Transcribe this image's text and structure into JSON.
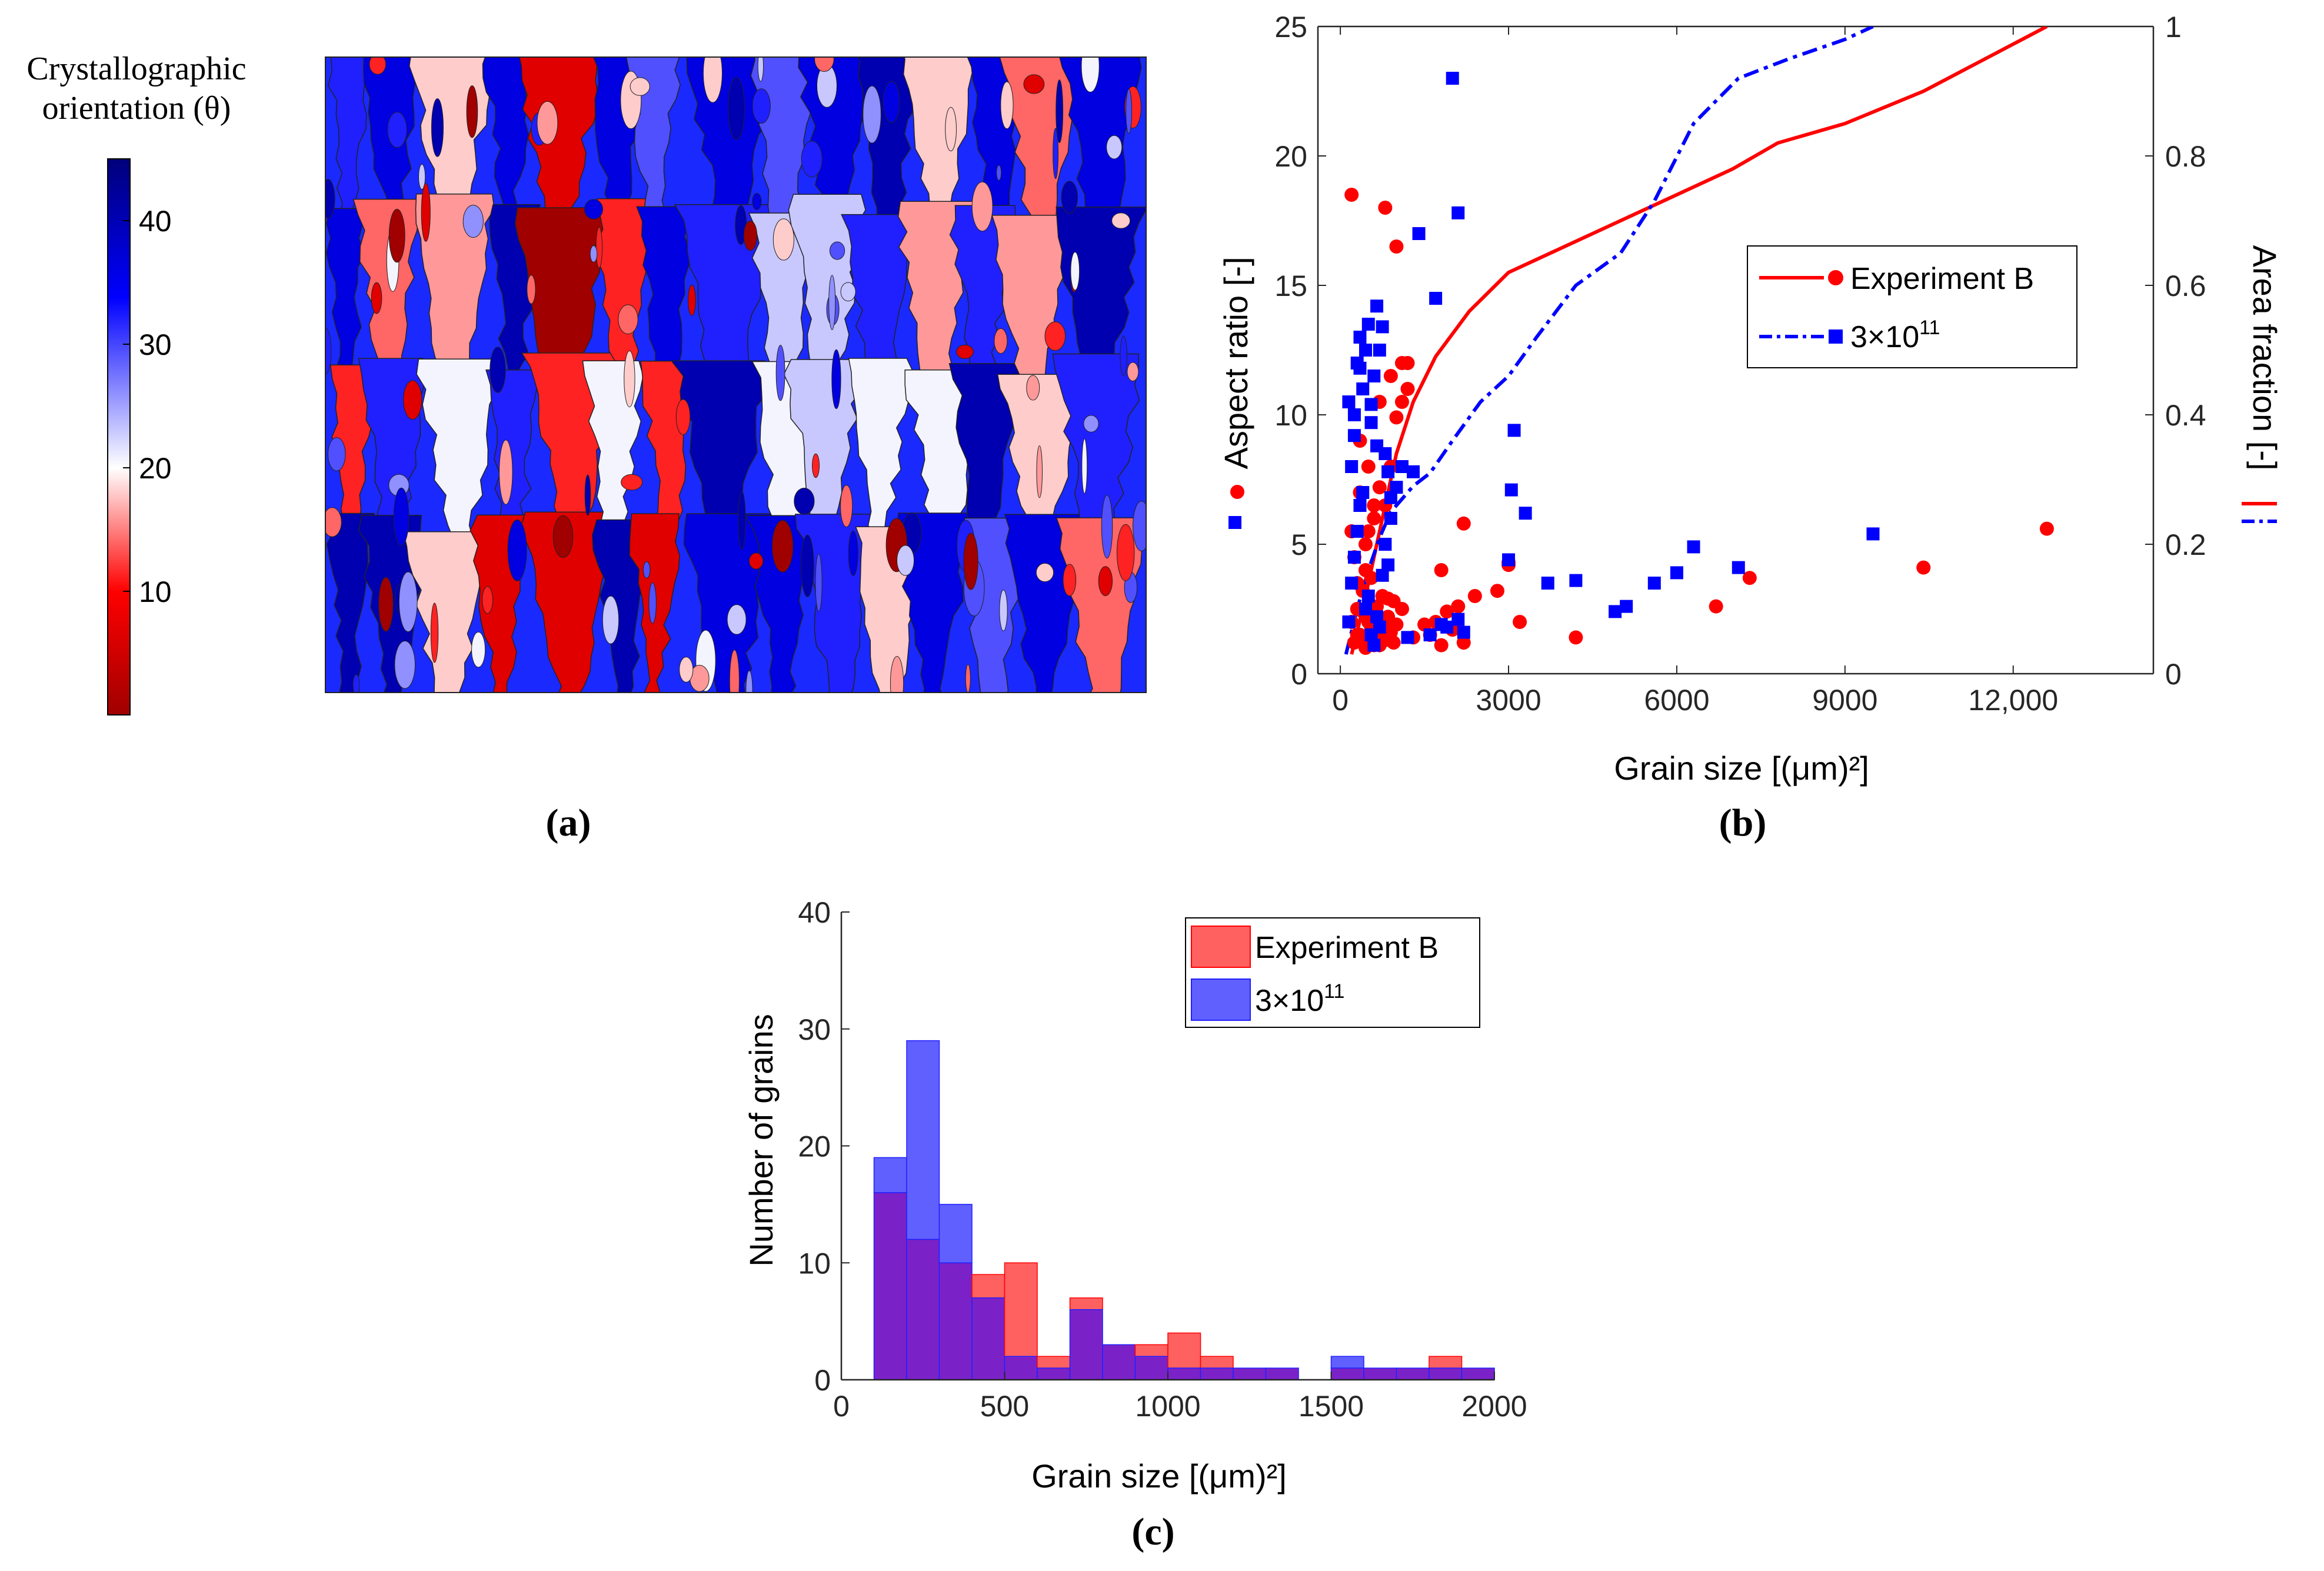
{
  "panels": {
    "a": {
      "caption": "(a)"
    },
    "b": {
      "caption": "(b)"
    },
    "c": {
      "caption": "(c)"
    }
  },
  "colorbar": {
    "title_line1": "Crystallographic",
    "title_line2": "orientation (θ)",
    "ticks": [
      "10",
      "20",
      "30",
      "40"
    ],
    "tick_values": [
      10,
      20,
      30,
      40
    ],
    "range": [
      0,
      45
    ],
    "colors": [
      "#a00000",
      "#ff0000",
      "#ffffff",
      "#0000ff",
      "#00007a"
    ]
  },
  "grain_map": {
    "palette": [
      "#a00000",
      "#e00000",
      "#ff2222",
      "#ff6666",
      "#ff9999",
      "#ffcccc",
      "#f4f4ff",
      "#c8c8ff",
      "#9090ff",
      "#5050ff",
      "#2020ff",
      "#0000e0",
      "#0000b0"
    ]
  },
  "chart_data": [
    {
      "id": "b",
      "type": "line",
      "xlabel": "Grain size [(μm)²]",
      "ylabel_left": "Aspect ratio [-]",
      "ylabel_right": "Area fraction [-]",
      "xlim": [
        -400,
        14500
      ],
      "ylim_left": [
        0,
        25
      ],
      "ylim_right": [
        0,
        1
      ],
      "xticks": [
        0,
        3000,
        6000,
        9000,
        12000
      ],
      "xtick_labels": [
        "0",
        "3000",
        "6000",
        "9000",
        "12,000"
      ],
      "yticks_left": [
        0,
        5,
        10,
        15,
        20,
        25
      ],
      "yticks_right": [
        0,
        0.2,
        0.4,
        0.6,
        0.8,
        1
      ],
      "yticks_right_labels": [
        "0",
        "0.2",
        "0.4",
        "0.6",
        "0.8",
        "1"
      ],
      "legend": {
        "placement": "center-right",
        "entries": [
          "Experiment B",
          "3×10"
        ],
        "superscript": "11"
      },
      "colors": {
        "experiment": "#ff0000",
        "simulation": "#0000ff"
      },
      "series": [
        {
          "name": "Experiment B",
          "kind": "scatter",
          "axis": "left",
          "marker": "circle",
          "x": [
            200,
            250,
            300,
            350,
            400,
            450,
            500,
            550,
            600,
            650,
            700,
            750,
            800,
            850,
            900,
            950,
            1000,
            250,
            300,
            400,
            500,
            600,
            700,
            800,
            900,
            1000,
            1100,
            1200,
            350,
            450,
            550,
            650,
            750,
            850,
            950,
            200,
            300,
            500,
            700,
            900,
            1100,
            1300,
            1500,
            1600,
            1700,
            1800,
            1900,
            2000,
            2100,
            2200,
            2400,
            2800,
            3000,
            3200,
            4200,
            6700,
            7300,
            10400,
            12600,
            200,
            800,
            1000,
            1100,
            1200,
            1800,
            2200,
            3000,
            700,
            900,
            500,
            600,
            450,
            350
          ],
          "y": [
            18.5,
            1.2,
            2.5,
            1.5,
            3.2,
            1.0,
            2.0,
            1.8,
            1.1,
            2.6,
            1.4,
            3.0,
            1.3,
            2.2,
            1.6,
            2.8,
            1.9,
            4.5,
            3.5,
            2.4,
            5.5,
            6.0,
            7.2,
            6.5,
            8.0,
            9.9,
            10.5,
            12.0,
            9.0,
            4.0,
            3.7,
            2.2,
            1.7,
            2.9,
            1.2,
            2.0,
            1.5,
            1.3,
            1.1,
            1.8,
            2.5,
            1.4,
            1.9,
            1.5,
            2.0,
            1.1,
            2.4,
            1.7,
            2.6,
            1.2,
            3.0,
            3.2,
            4.2,
            2.0,
            1.4,
            2.6,
            3.7,
            4.1,
            5.6,
            5.5,
            18.0,
            16.5,
            12.0,
            11.0,
            4.0,
            5.8,
            4.3,
            10.5,
            11.5,
            8.0,
            6.5,
            5.0,
            7.0
          ]
        },
        {
          "name": "3×10¹¹",
          "kind": "scatter",
          "axis": "left",
          "marker": "square",
          "x": [
            150,
            200,
            250,
            300,
            350,
            400,
            450,
            500,
            550,
            600,
            650,
            700,
            750,
            800,
            850,
            900,
            150,
            200,
            250,
            300,
            350,
            400,
            450,
            500,
            550,
            600,
            650,
            700,
            750,
            800,
            850,
            900,
            1000,
            1100,
            1300,
            1600,
            1700,
            1900,
            2000,
            2100,
            2200,
            3000,
            3050,
            3100,
            3300,
            3700,
            4200,
            4900,
            5100,
            5600,
            6000,
            6300,
            7100,
            9500,
            1400,
            1800,
            1200,
            2100,
            250,
            350,
            550,
            650
          ],
          "y": [
            10.5,
            8.0,
            9.2,
            12.0,
            13.0,
            11.0,
            12.5,
            13.5,
            9.7,
            11.5,
            14.2,
            12.5,
            13.4,
            8.5,
            7.8,
            6.0,
            2.0,
            3.5,
            4.5,
            5.5,
            6.5,
            7.0,
            2.5,
            3.0,
            1.5,
            1.1,
            2.2,
            1.8,
            3.8,
            5.0,
            4.2,
            6.8,
            7.2,
            8.0,
            7.8,
            1.5,
            14.5,
            1.8,
            23.0,
            17.8,
            1.6,
            4.4,
            7.1,
            9.4,
            6.2,
            3.5,
            3.6,
            2.4,
            2.6,
            3.5,
            3.9,
            4.9,
            4.1,
            5.4,
            17.0,
            1.9,
            1.4,
            2.1,
            10.0,
            11.8,
            10.4,
            8.8
          ]
        },
        {
          "name": "Experiment B",
          "kind": "line",
          "axis": "right",
          "style": "solid",
          "x": [
            200,
            400,
            600,
            800,
            1000,
            1300,
            1700,
            2300,
            3000,
            4000,
            5000,
            6000,
            7000,
            7800,
            9000,
            10400,
            11500,
            12600
          ],
          "y": [
            0.03,
            0.1,
            0.18,
            0.26,
            0.34,
            0.42,
            0.49,
            0.56,
            0.62,
            0.66,
            0.7,
            0.74,
            0.78,
            0.82,
            0.85,
            0.9,
            0.95,
            1.0
          ]
        },
        {
          "name": "3×10¹¹",
          "kind": "line",
          "axis": "right",
          "style": "dashdot",
          "x": [
            100,
            300,
            500,
            700,
            900,
            1100,
            1300,
            1600,
            2000,
            2500,
            3000,
            3500,
            4200,
            5000,
            5600,
            6300,
            7100,
            8000,
            9000,
            9500
          ],
          "y": [
            0.03,
            0.1,
            0.16,
            0.21,
            0.25,
            0.27,
            0.29,
            0.31,
            0.36,
            0.42,
            0.46,
            0.52,
            0.6,
            0.65,
            0.73,
            0.85,
            0.92,
            0.95,
            0.98,
            1.0
          ]
        }
      ]
    },
    {
      "id": "c",
      "type": "bar",
      "xlabel": "Grain size [(μm)²]",
      "ylabel": "Number of grains",
      "xlim": [
        0,
        2000
      ],
      "ylim": [
        0,
        40
      ],
      "xticks": [
        0,
        500,
        1000,
        1500,
        2000
      ],
      "yticks": [
        0,
        10,
        20,
        30,
        40
      ],
      "bin_edges": [
        100,
        200,
        300,
        400,
        500,
        600,
        700,
        800,
        900,
        1000,
        1100,
        1200,
        1300,
        1400,
        1500,
        1600,
        1700,
        1800,
        1900,
        2000
      ],
      "legend": {
        "placement": "top-right",
        "entries": [
          "Experiment B",
          "3×10"
        ],
        "superscript": "11"
      },
      "colors": {
        "experiment": "#ff6060",
        "simulation": "#6060ff",
        "overlap": "#7a22c8",
        "experiment_edge": "#ff0000",
        "simulation_edge": "#2020ff"
      },
      "series": [
        {
          "name": "Experiment B",
          "values": [
            16,
            12,
            10,
            9,
            10,
            2,
            7,
            3,
            3,
            4,
            2,
            1,
            1,
            0,
            1,
            1,
            1,
            2,
            1
          ]
        },
        {
          "name": "3×10¹¹",
          "values": [
            19,
            29,
            15,
            7,
            2,
            1,
            6,
            3,
            2,
            1,
            1,
            1,
            1,
            0,
            2,
            1,
            1,
            1,
            1
          ]
        }
      ]
    }
  ]
}
